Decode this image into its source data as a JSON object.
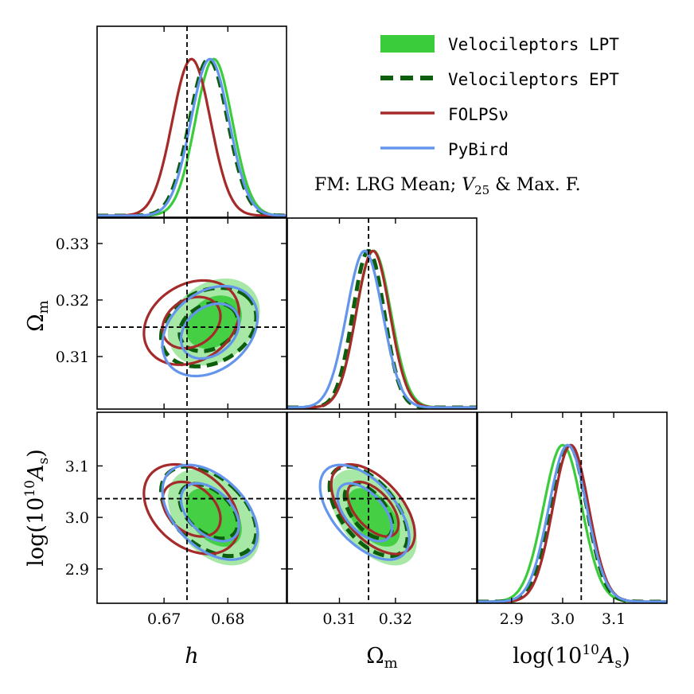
{
  "chart_data": {
    "type": "corner",
    "parameters": [
      {
        "label": "h",
        "range": [
          0.6595,
          0.6892
        ],
        "ticks": [
          0.67,
          0.68
        ],
        "tick_labels": [
          "0.67",
          "0.68"
        ],
        "fiducial": 0.6736
      },
      {
        "label": "Ωm",
        "range": [
          0.3007,
          0.3345
        ],
        "ticks": [
          0.31,
          0.32
        ],
        "tick_labels": [
          "0.31",
          "0.32"
        ],
        "y_ticks": [
          0.31,
          0.32,
          0.33
        ],
        "y_tick_labels": [
          "0.31",
          "0.32",
          "0.33"
        ],
        "fiducial": 0.3152
      },
      {
        "label": "log(10^10 As)",
        "range": [
          2.8333,
          3.2042
        ],
        "ticks": [
          2.9,
          3.0,
          3.1
        ],
        "tick_labels": [
          "2.9",
          "3.0",
          "3.1"
        ],
        "fiducial": 3.0364
      }
    ],
    "axis_labels": {
      "h": "h",
      "omega_m": "Ω",
      "omega_m_sub": "m",
      "logas_pre": "log(10",
      "logas_exp": "10",
      "logas_mid": "A",
      "logas_sub": "s",
      "logas_post": ")"
    },
    "series": [
      {
        "name": "Velocileptors LPT",
        "color": "#3bcc3b",
        "fill": true,
        "dash": false,
        "mean": [
          0.6778,
          0.3161,
          3.0
        ],
        "sigma": [
          0.0029,
          0.0031,
          0.0375
        ],
        "corr": {
          "h_om": 0.25,
          "h_as": -0.4,
          "om_as": -0.5
        }
      },
      {
        "name": "Velocileptors EPT",
        "color": "#0b5e0b",
        "fill": false,
        "dash": true,
        "mean": [
          0.677,
          0.3152,
          3.012
        ],
        "sigma": [
          0.003,
          0.0028,
          0.035
        ],
        "corr": {
          "h_om": 0.25,
          "h_as": -0.45,
          "om_as": -0.55
        }
      },
      {
        "name": "FOLPSν",
        "color": "#a52a2a",
        "fill": false,
        "dash": false,
        "mean": [
          0.6743,
          0.316,
          3.016
        ],
        "sigma": [
          0.003,
          0.003,
          0.035
        ],
        "corr": {
          "h_om": 0.25,
          "h_as": -0.35,
          "om_as": -0.55
        }
      },
      {
        "name": "PyBird",
        "color": "#6495ed",
        "fill": false,
        "dash": false,
        "mean": [
          0.6772,
          0.3145,
          3.01
        ],
        "sigma": [
          0.003,
          0.0032,
          0.037
        ],
        "corr": {
          "h_om": 0.3,
          "h_as": -0.45,
          "om_as": -0.55
        }
      }
    ],
    "legend": {
      "placement": "top-right",
      "entries": [
        "Velocileptors LPT",
        "Velocileptors EPT",
        "FOLPSν",
        "PyBird"
      ],
      "note_prefix": "FM: LRG Mean; ",
      "note_v": "V",
      "note_sub": "25",
      "note_suffix": " & Max. F."
    },
    "grid": false
  }
}
